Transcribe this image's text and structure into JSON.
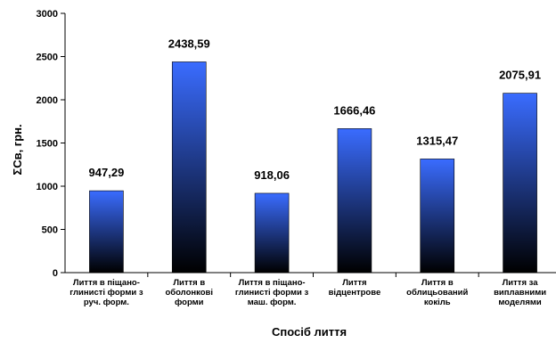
{
  "chart_data": {
    "type": "bar",
    "categories": [
      [
        "Лиття в піщано-",
        "глинисті форми з",
        "руч. форм."
      ],
      [
        "Лиття в",
        "оболонкові",
        "форми"
      ],
      [
        "Лиття в піщано-",
        "глинисті форми з",
        "маш. форм."
      ],
      [
        "Лиття",
        "відцентрове"
      ],
      [
        "Лиття в",
        "облицьований",
        "кокіль"
      ],
      [
        "Лиття за",
        "виплавними",
        "моделями"
      ]
    ],
    "values": [
      947.29,
      2438.59,
      918.06,
      1666.46,
      1315.47,
      2075.91
    ],
    "data_labels": [
      "947,29",
      "2438,59",
      "918,06",
      "1666,46",
      "1315,47",
      "2075,91"
    ],
    "y_ticks": [
      "0",
      "500",
      "1000",
      "1500",
      "2000",
      "2500",
      "3000"
    ],
    "ylim": [
      0,
      3000
    ],
    "xlabel": "Спосіб лиття",
    "ylabel": "ΣCв, грн.",
    "bar_gradient": [
      "#3a6cff",
      "#000000"
    ],
    "grid": false,
    "legend": "none"
  }
}
